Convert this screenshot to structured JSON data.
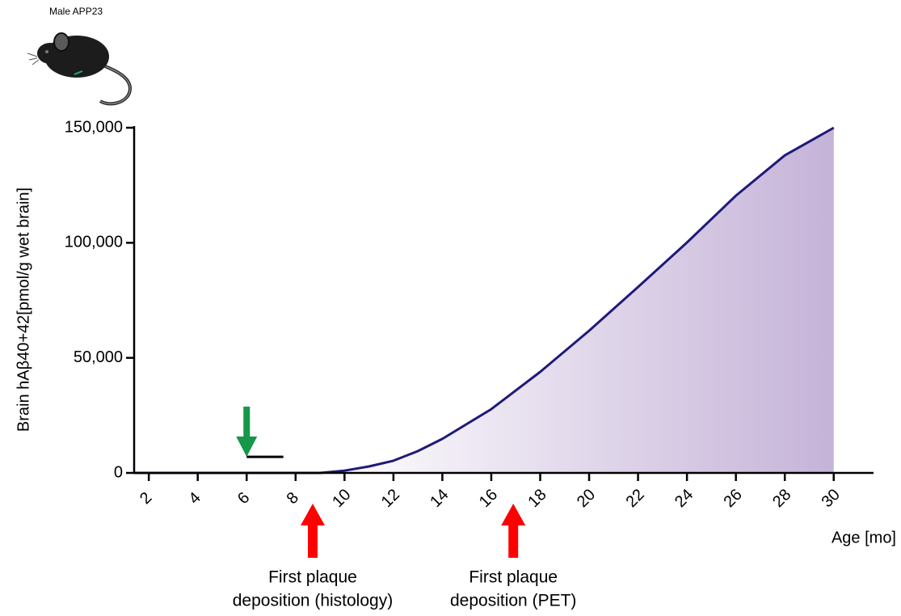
{
  "chart_data": {
    "type": "area",
    "subtitle": "Male APP23",
    "y_label": "Brain  hAβ40+42[pmol/g wet brain]",
    "x_label": "Age [mo]",
    "x": [
      1.4,
      4,
      6,
      8,
      9,
      10,
      11,
      12,
      13,
      14,
      16,
      18,
      20,
      22,
      24,
      26,
      28,
      30
    ],
    "series": [
      {
        "color": "#1f1a78",
        "fill": [
          "#ffffff",
          "#c5b3d8"
        ],
        "values": [
          0,
          0,
          0,
          0,
          0,
          1000,
          2800,
          5300,
          9500,
          14800,
          27700,
          43900,
          61800,
          80800,
          100100,
          120500,
          138000,
          150000
        ]
      }
    ],
    "xlim": [
      1.4,
      30.9
    ],
    "ylim": [
      0,
      150000
    ],
    "xticks": [
      2,
      4,
      6,
      8,
      10,
      12,
      14,
      16,
      18,
      20,
      22,
      24,
      26,
      28,
      30
    ],
    "yticks": [
      {
        "value": 0,
        "label": "0"
      },
      {
        "value": 50000,
        "label": "50,000"
      },
      {
        "value": 100000,
        "label": "100,000"
      },
      {
        "value": 150000,
        "label": "150,000"
      }
    ],
    "annotations": [
      {
        "text": [
          "First plaque",
          "deposition (histology)"
        ],
        "x": 8.7,
        "color": "#ff0000"
      },
      {
        "text": [
          "First plaque",
          "deposition (PET)"
        ],
        "x": 16.9,
        "color": "#ff0000"
      }
    ],
    "marker": {
      "x": 6,
      "color": "#16974a",
      "bar_x": [
        6,
        7.5
      ],
      "bar_y": 7000
    }
  }
}
